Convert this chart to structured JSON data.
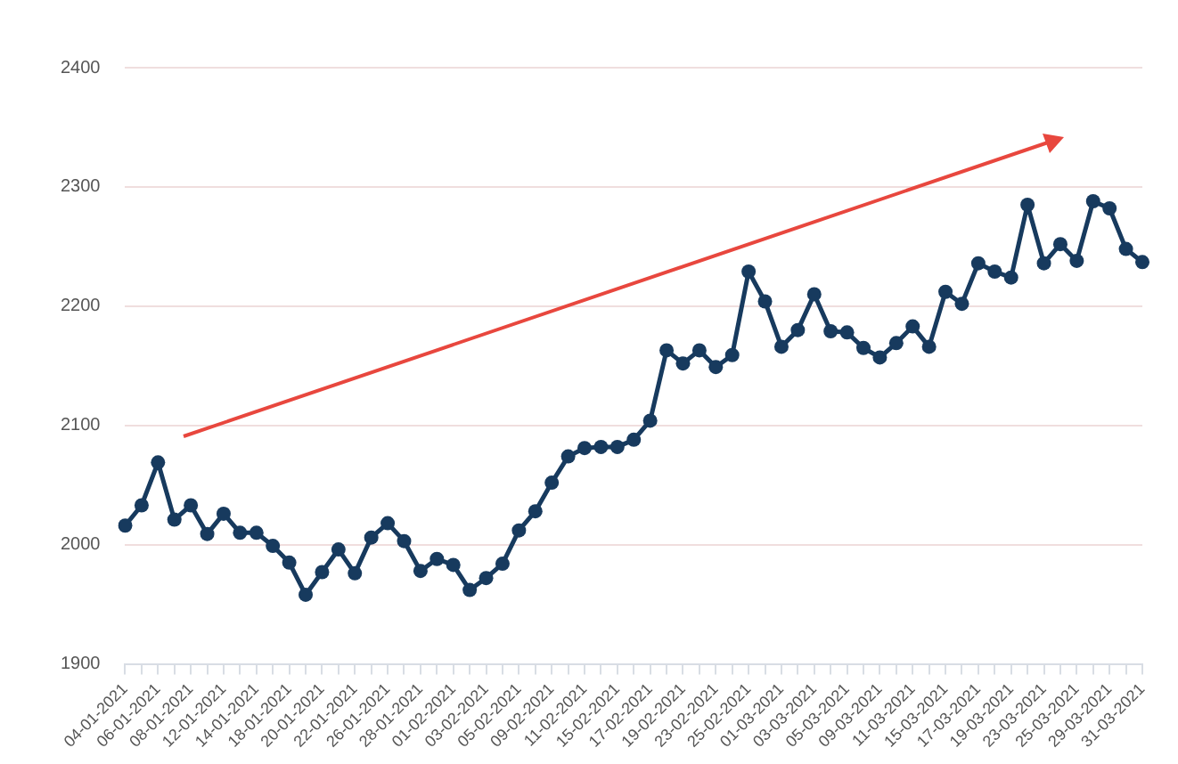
{
  "chart_data": {
    "type": "line",
    "categories": [
      "04-01-2021",
      null,
      "06-01-2021",
      null,
      "08-01-2021",
      null,
      "12-01-2021",
      null,
      "14-01-2021",
      null,
      "18-01-2021",
      null,
      "20-01-2021",
      null,
      "22-01-2021",
      null,
      "26-01-2021",
      null,
      "28-01-2021",
      null,
      "01-02-2021",
      null,
      "03-02-2021",
      null,
      "05-02-2021",
      null,
      "09-02-2021",
      null,
      "11-02-2021",
      null,
      "15-02-2021",
      null,
      "17-02-2021",
      null,
      "19-02-2021",
      null,
      "23-02-2021",
      null,
      "25-02-2021",
      null,
      "01-03-2021",
      null,
      "03-03-2021",
      null,
      "05-03-2021",
      null,
      "09-03-2021",
      null,
      "11-03-2021",
      null,
      "15-03-2021",
      null,
      "17-03-2021",
      null,
      "19-03-2021",
      null,
      "23-03-2021",
      null,
      "25-03-2021",
      null,
      "29-03-2021",
      null,
      "31-03-2021"
    ],
    "series": [
      {
        "color": "#173a5e",
        "values": [
          2016,
          2033,
          2069,
          2021,
          2033,
          2009,
          2026,
          2010,
          2010,
          1999,
          1985,
          1958,
          1977,
          1996,
          1976,
          2006,
          2018,
          2003,
          1978,
          1988,
          1983,
          1962,
          1972,
          1984,
          2012,
          2028,
          2052,
          2074,
          2081,
          2082,
          2082,
          2088,
          2104,
          2163,
          2152,
          2163,
          2149,
          2159,
          2229,
          2204,
          2166,
          2180,
          2210,
          2179,
          2178,
          2165,
          2157,
          2169,
          2183,
          2166,
          2212,
          2202,
          2236,
          2229,
          2224,
          2285,
          2236,
          2252,
          2238,
          2288,
          2282,
          2248,
          2237
        ]
      }
    ],
    "ylim": [
      1900,
      2400
    ],
    "yticks": [
      1900,
      2000,
      2100,
      2200,
      2300,
      2400
    ],
    "grid": "y",
    "legend": false,
    "marker": "circle",
    "line_style": "solid"
  }
}
